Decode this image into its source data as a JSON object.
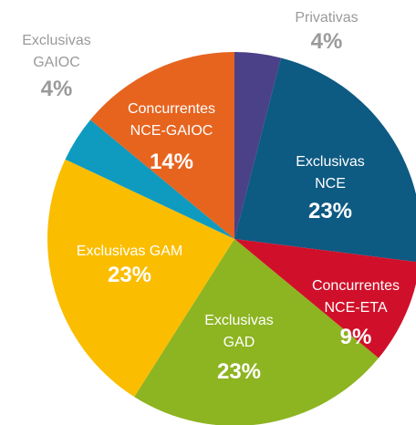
{
  "chart_data": {
    "type": "pie",
    "categories": [
      "Privativas",
      "Exclusivas\nNCE",
      "Concurrentes\nNCE-ETA",
      "Exclusivas\nGAD",
      "Exclusivas GAM",
      "Exclusivas\nGAIOC",
      "Concurrentes\nNCE-GAIOC"
    ],
    "values": [
      4,
      23,
      9,
      23,
      23,
      4,
      14
    ],
    "value_labels": [
      "4%",
      "23%",
      "9%",
      "23%",
      "23%",
      "4%",
      "14%"
    ],
    "colors": [
      "#4b4188",
      "#0d5a82",
      "#d0102a",
      "#8db421",
      "#fbbd00",
      "#0e9bbf",
      "#e7641f"
    ]
  }
}
